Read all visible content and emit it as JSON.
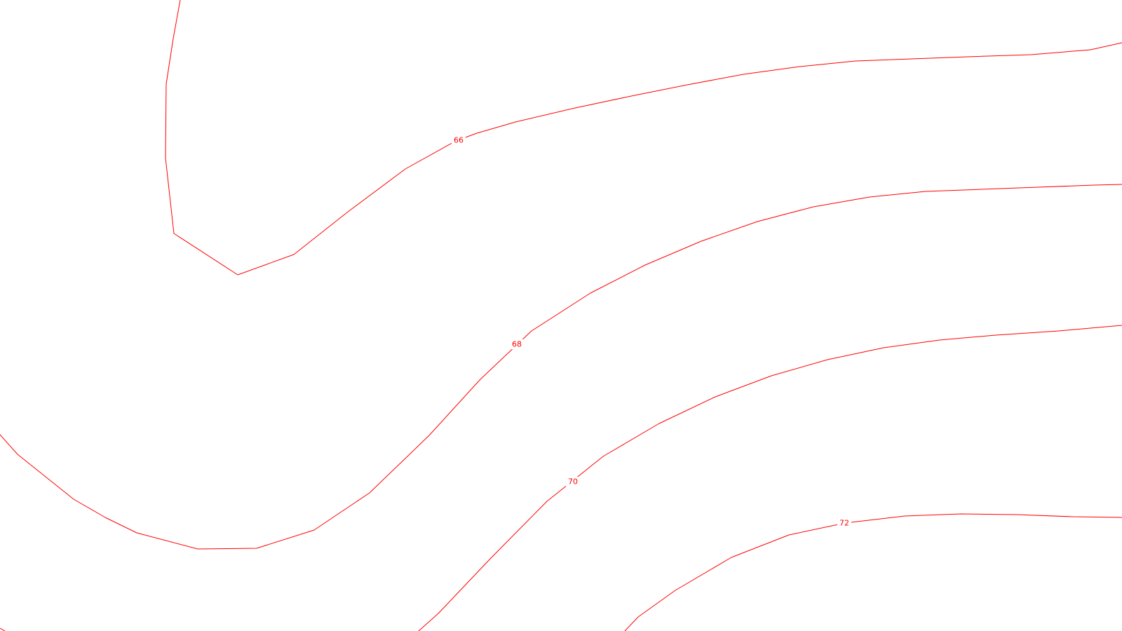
{
  "map": {
    "line_color": "#ff0000",
    "background_color": "#ffffff",
    "contours": [
      {
        "id": "contour-66",
        "label": "66"
      },
      {
        "id": "contour-68",
        "label": "68"
      },
      {
        "id": "contour-70",
        "label": "70"
      },
      {
        "id": "contour-72",
        "label": "72"
      }
    ]
  }
}
